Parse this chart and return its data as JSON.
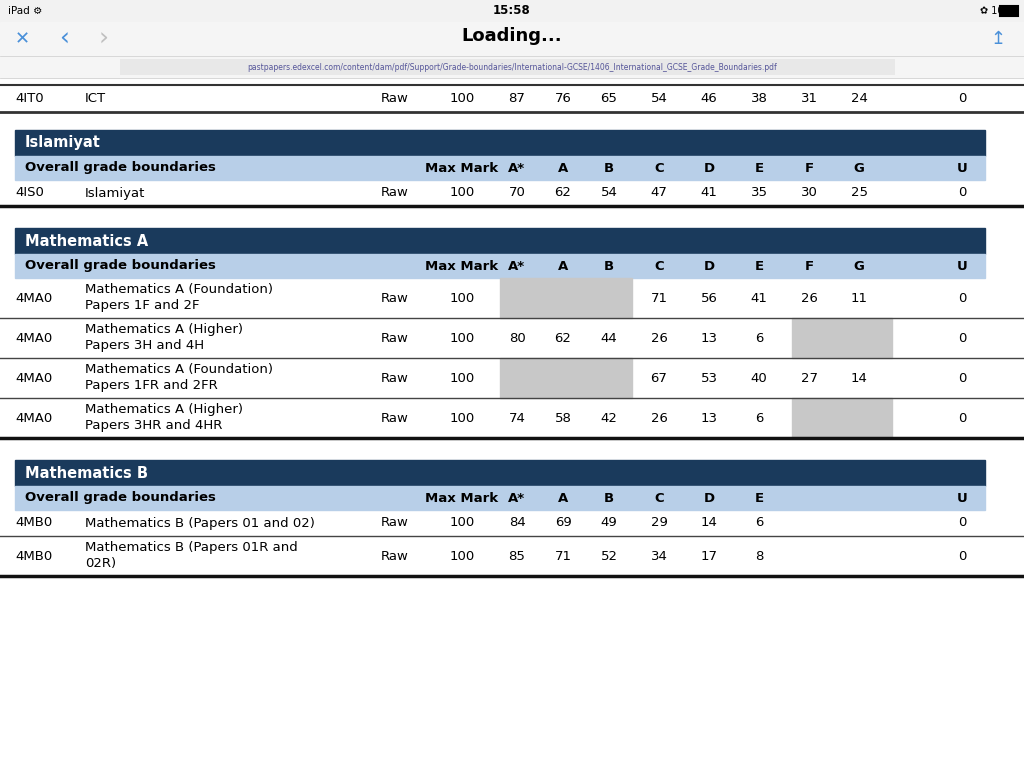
{
  "bg_color": "#ffffff",
  "dark_header_color": "#1a3a5c",
  "light_header_color": "#b8cfe8",
  "gray_cell_color": "#c8c8c8",
  "url": "pastpapers.edexcel.com/content/dam/pdf/Support/Grade-boundaries/International-GCSE/1406_International_GCSE_Grade_Boundaries.pdf",
  "top_row": {
    "code": "4IT0",
    "subject": "ICT",
    "type": "Raw",
    "values": [
      100,
      87,
      76,
      65,
      54,
      46,
      38,
      31,
      24,
      0
    ]
  },
  "sections": [
    {
      "title": "Islamiyat",
      "rows": [
        {
          "code": "4IS0",
          "subject_lines": [
            "Islamiyat"
          ],
          "type": "Raw",
          "max_mark": 100,
          "grades": {
            "Astar": 70,
            "A": 62,
            "B": 54,
            "C": 47,
            "D": 41,
            "E": 35,
            "F": 30,
            "G": 25,
            "U": 0
          },
          "gray_cols": []
        }
      ],
      "has_FG": true
    },
    {
      "title": "Mathematics A",
      "rows": [
        {
          "code": "4MA0",
          "subject_lines": [
            "Mathematics A (Foundation)",
            "Papers 1F and 2F"
          ],
          "type": "Raw",
          "max_mark": 100,
          "grades": {
            "Astar": null,
            "A": null,
            "B": null,
            "C": 71,
            "D": 56,
            "E": 41,
            "F": 26,
            "G": 11,
            "U": 0
          },
          "gray_cols": [
            "Astar",
            "A",
            "B"
          ]
        },
        {
          "code": "4MA0",
          "subject_lines": [
            "Mathematics A (Higher)",
            "Papers 3H and 4H"
          ],
          "type": "Raw",
          "max_mark": 100,
          "grades": {
            "Astar": 80,
            "A": 62,
            "B": 44,
            "C": 26,
            "D": 13,
            "E": 6,
            "F": null,
            "G": null,
            "U": 0
          },
          "gray_cols": [
            "F",
            "G"
          ]
        },
        {
          "code": "4MA0",
          "subject_lines": [
            "Mathematics A (Foundation)",
            "Papers 1FR and 2FR"
          ],
          "type": "Raw",
          "max_mark": 100,
          "grades": {
            "Astar": null,
            "A": null,
            "B": null,
            "C": 67,
            "D": 53,
            "E": 40,
            "F": 27,
            "G": 14,
            "U": 0
          },
          "gray_cols": [
            "Astar",
            "A",
            "B"
          ]
        },
        {
          "code": "4MA0",
          "subject_lines": [
            "Mathematics A (Higher)",
            "Papers 3HR and 4HR"
          ],
          "type": "Raw",
          "max_mark": 100,
          "grades": {
            "Astar": 74,
            "A": 58,
            "B": 42,
            "C": 26,
            "D": 13,
            "E": 6,
            "F": null,
            "G": null,
            "U": 0
          },
          "gray_cols": [
            "F",
            "G"
          ]
        }
      ],
      "has_FG": true
    },
    {
      "title": "Mathematics B",
      "rows": [
        {
          "code": "4MB0",
          "subject_lines": [
            "Mathematics B (Papers 01 and 02)"
          ],
          "type": "Raw",
          "max_mark": 100,
          "grades": {
            "Astar": 84,
            "A": 69,
            "B": 49,
            "C": 29,
            "D": 14,
            "E": 6,
            "F": null,
            "G": null,
            "U": 0
          },
          "gray_cols": []
        },
        {
          "code": "4MB0",
          "subject_lines": [
            "Mathematics B (Papers 01R and",
            "02R)"
          ],
          "type": "Raw",
          "max_mark": 100,
          "grades": {
            "Astar": 85,
            "A": 71,
            "B": 52,
            "C": 34,
            "D": 17,
            "E": 8,
            "F": null,
            "G": null,
            "U": 0
          },
          "gray_cols": []
        }
      ],
      "has_FG": false
    }
  ]
}
